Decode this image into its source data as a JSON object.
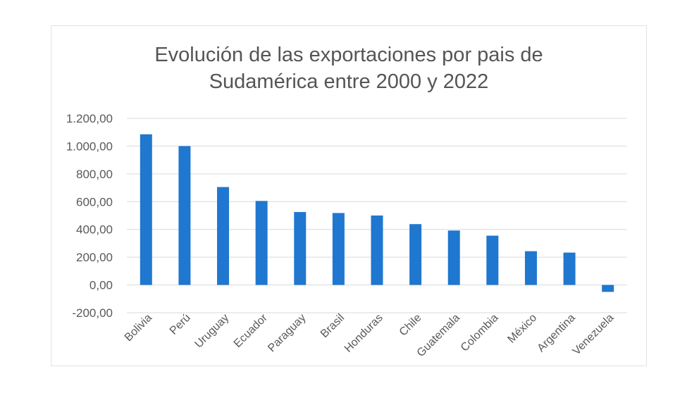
{
  "chart_data": {
    "type": "bar",
    "title": "Evolución de las exportaciones por pais de Sudamérica entre 2000 y 2022",
    "title_lines": [
      "Evolución de las exportaciones por pais de",
      "Sudamérica entre 2000 y 2022"
    ],
    "xlabel": "",
    "ylabel": "",
    "categories": [
      "Bolivia",
      "Perú",
      "Uruguay",
      "Ecuador",
      "Paraguay",
      "Brasil",
      "Honduras",
      "Chile",
      "Guatemala",
      "Colombia",
      "México",
      "Argentina",
      "Venezuela"
    ],
    "values": [
      1085,
      1000,
      705,
      605,
      525,
      518,
      500,
      438,
      392,
      355,
      243,
      233,
      -50
    ],
    "ylim": [
      -200,
      1200
    ],
    "yticks": [
      -200,
      0,
      200,
      400,
      600,
      800,
      1000,
      1200
    ],
    "ytick_labels": [
      "-200,00",
      "0,00",
      "200,00",
      "400,00",
      "600,00",
      "800,00",
      "1.000,00",
      "1.200,00"
    ],
    "grid": true,
    "legend": "none",
    "bar_color": "#1f77d0",
    "grid_color": "#d9d9d9",
    "text_color": "#595959"
  }
}
